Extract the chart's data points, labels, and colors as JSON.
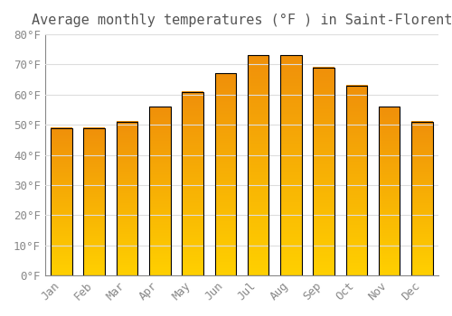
{
  "title": "Average monthly temperatures (°F ) in Saint-Florent",
  "months": [
    "Jan",
    "Feb",
    "Mar",
    "Apr",
    "May",
    "Jun",
    "Jul",
    "Aug",
    "Sep",
    "Oct",
    "Nov",
    "Dec"
  ],
  "values": [
    49,
    49,
    51,
    56,
    61,
    67,
    73,
    73,
    69,
    63,
    56,
    51
  ],
  "bar_color_bottom": "#FFD000",
  "bar_color_top": "#F0900A",
  "ylim": [
    0,
    80
  ],
  "yticks": [
    0,
    10,
    20,
    30,
    40,
    50,
    60,
    70,
    80
  ],
  "ytick_labels": [
    "0°F",
    "10°F",
    "20°F",
    "30°F",
    "40°F",
    "50°F",
    "60°F",
    "70°F",
    "80°F"
  ],
  "background_color": "#FFFFFF",
  "grid_color": "#DDDDDD",
  "title_fontsize": 11,
  "tick_fontsize": 9,
  "font_family": "monospace",
  "bar_width": 0.65
}
